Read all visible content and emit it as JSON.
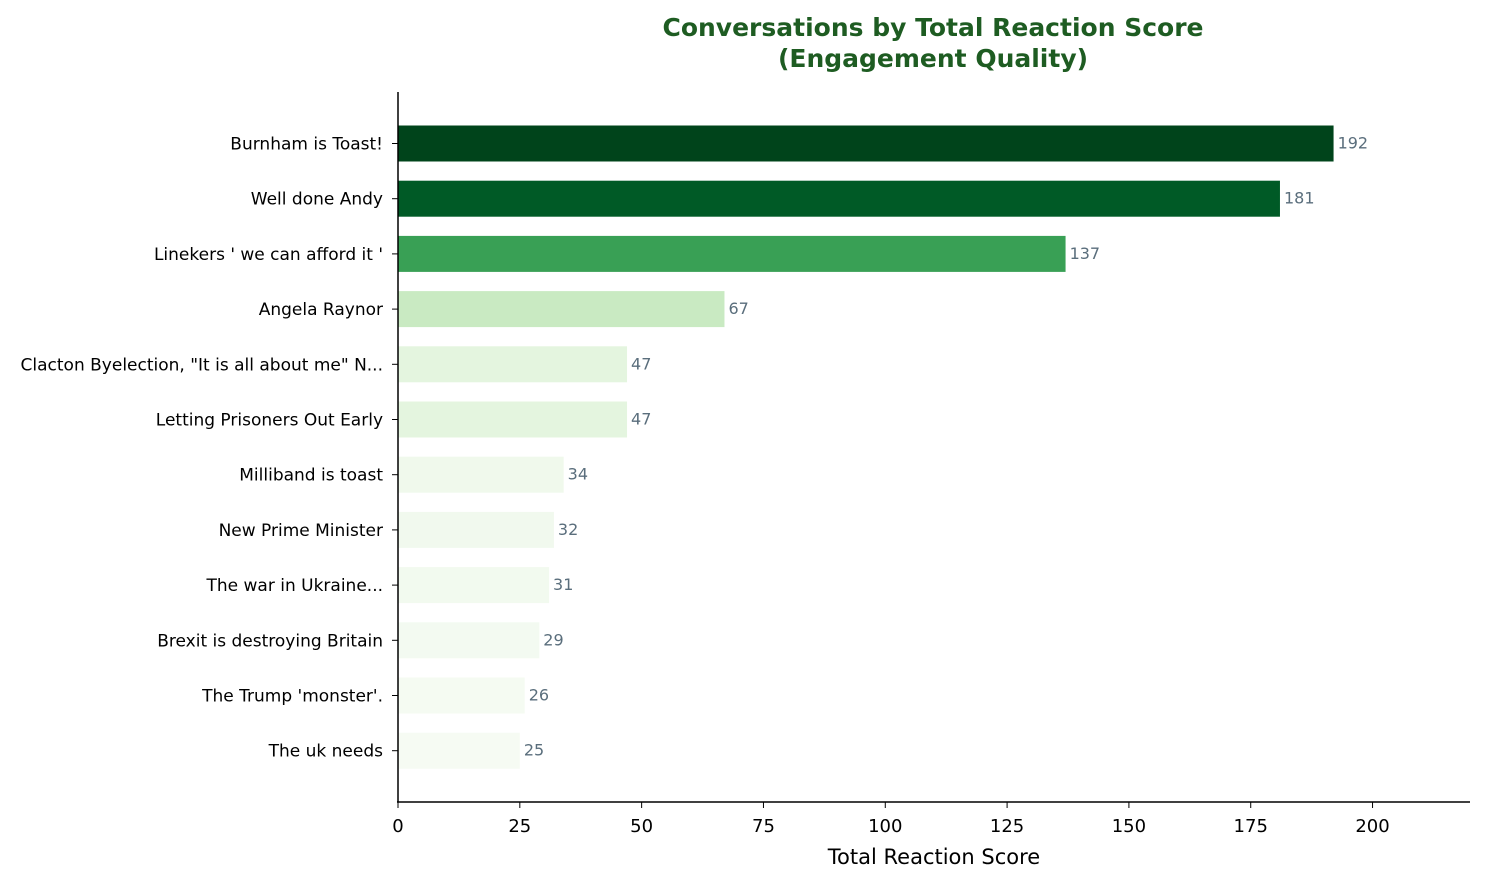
{
  "chart_data": {
    "type": "bar",
    "orientation": "horizontal",
    "title": "Conversations by Total Reaction Score",
    "subtitle": "(Engagement Quality)",
    "xlabel": "Total Reaction Score",
    "ylabel": "",
    "xlim": [
      0,
      220
    ],
    "xticks": [
      0,
      25,
      50,
      75,
      100,
      125,
      150,
      175,
      200
    ],
    "grid": false,
    "categories": [
      "Burnham is Toast!",
      "Well done Andy",
      "Linekers ' we can afford it '",
      "Angela Raynor",
      "Clacton Byelection, \"It is all about me\" N...",
      "Letting Prisoners Out Early",
      "Milliband is toast",
      "New Prime Minister",
      "The war in Ukraine...",
      "Brexit is destroying Britain",
      "The Trump 'monster'.",
      "The uk needs"
    ],
    "values": [
      192,
      181,
      137,
      67,
      47,
      47,
      34,
      32,
      31,
      29,
      26,
      25
    ],
    "colors": [
      "#00441b",
      "#005a26",
      "#39a055",
      "#c9eac2",
      "#e4f5df",
      "#e4f5df",
      "#f0f9ec",
      "#f1f9ee",
      "#f2faef",
      "#f3faf1",
      "#f5fbf2",
      "#f6fbf3"
    ]
  }
}
